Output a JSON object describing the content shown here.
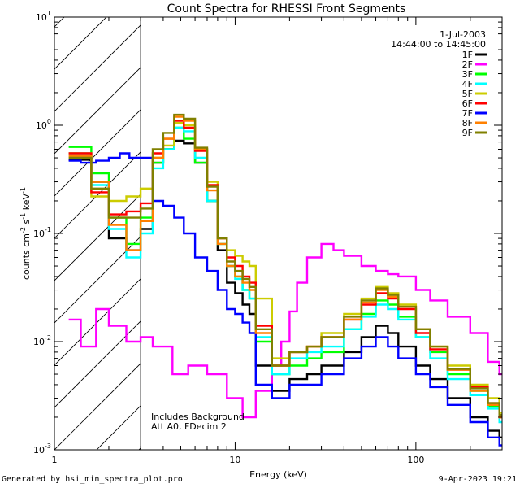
{
  "chart_data": {
    "type": "line",
    "title": "Count Spectra for RHESSI Front Segments",
    "xlabel": "Energy (keV)",
    "ylabel": "counts cm⁻² s⁻¹ keV⁻¹",
    "ylabel_parts": [
      "counts cm",
      "-2",
      " s",
      "-1",
      " keV",
      "-1"
    ],
    "xscale": "log",
    "yscale": "log",
    "xlim": [
      1,
      300
    ],
    "ylim": [
      0.001,
      10
    ],
    "x_ticks": [
      {
        "value": 1,
        "label": "1"
      },
      {
        "value": 10,
        "label": "10"
      },
      {
        "value": 100,
        "label": "100"
      }
    ],
    "y_ticks": [
      {
        "value": 0.001,
        "base": "10",
        "exp": "-3"
      },
      {
        "value": 0.01,
        "base": "10",
        "exp": "-2"
      },
      {
        "value": 0.1,
        "base": "10",
        "exp": "-1"
      },
      {
        "value": 1,
        "base": "10",
        "exp": "0"
      },
      {
        "value": 10,
        "base": "10",
        "exp": "1"
      }
    ],
    "hatch_region": [
      1,
      3
    ],
    "legend_header": [
      "1-Jul-2003",
      "14:44:00 to 14:45:00"
    ],
    "legend_position": "top-right",
    "annotations": [
      "Includes Background",
      "Att A0, FDecim 2"
    ],
    "series": [
      {
        "name": "1F",
        "color": "#000000",
        "points": [
          [
            1.2,
            0.48
          ],
          [
            1.6,
            0.3
          ],
          [
            2.0,
            0.09
          ],
          [
            2.5,
            0.07
          ],
          [
            3.0,
            0.11
          ],
          [
            3.5,
            0.45
          ],
          [
            4.0,
            0.6
          ],
          [
            4.6,
            0.72
          ],
          [
            5.2,
            0.68
          ],
          [
            6.0,
            0.45
          ],
          [
            7.0,
            0.2
          ],
          [
            8.0,
            0.07
          ],
          [
            9.0,
            0.035
          ],
          [
            10.0,
            0.028
          ],
          [
            11.0,
            0.022
          ],
          [
            12.0,
            0.018
          ],
          [
            13.0,
            0.006
          ],
          [
            16,
            0.0035
          ],
          [
            20,
            0.0045
          ],
          [
            25,
            0.005
          ],
          [
            30,
            0.006
          ],
          [
            40,
            0.008
          ],
          [
            50,
            0.011
          ],
          [
            60,
            0.014
          ],
          [
            70,
            0.012
          ],
          [
            80,
            0.009
          ],
          [
            100,
            0.006
          ],
          [
            120,
            0.0045
          ],
          [
            150,
            0.003
          ],
          [
            200,
            0.002
          ],
          [
            250,
            0.0015
          ],
          [
            290,
            0.0013
          ]
        ]
      },
      {
        "name": "2F",
        "color": "#ff00ff",
        "points": [
          [
            1.2,
            0.016
          ],
          [
            1.4,
            0.009
          ],
          [
            1.7,
            0.02
          ],
          [
            2.0,
            0.014
          ],
          [
            2.5,
            0.01
          ],
          [
            3.0,
            0.011
          ],
          [
            3.5,
            0.009
          ],
          [
            4.5,
            0.005
          ],
          [
            5.5,
            0.006
          ],
          [
            7.0,
            0.005
          ],
          [
            9.0,
            0.003
          ],
          [
            11.0,
            0.002
          ],
          [
            13.0,
            0.0035
          ],
          [
            16,
            0.006
          ],
          [
            18,
            0.01
          ],
          [
            20,
            0.019
          ],
          [
            22,
            0.035
          ],
          [
            25,
            0.06
          ],
          [
            30,
            0.08
          ],
          [
            35,
            0.07
          ],
          [
            40,
            0.062
          ],
          [
            50,
            0.05
          ],
          [
            60,
            0.045
          ],
          [
            70,
            0.042
          ],
          [
            80,
            0.04
          ],
          [
            100,
            0.03
          ],
          [
            120,
            0.024
          ],
          [
            150,
            0.017
          ],
          [
            200,
            0.012
          ],
          [
            250,
            0.0065
          ],
          [
            290,
            0.005
          ]
        ]
      },
      {
        "name": "3F",
        "color": "#00ff00",
        "points": [
          [
            1.2,
            0.63
          ],
          [
            1.6,
            0.36
          ],
          [
            2.0,
            0.14
          ],
          [
            2.5,
            0.08
          ],
          [
            3.0,
            0.14
          ],
          [
            3.5,
            0.45
          ],
          [
            4.0,
            0.6
          ],
          [
            4.6,
            0.95
          ],
          [
            5.2,
            0.75
          ],
          [
            6.0,
            0.45
          ],
          [
            7.0,
            0.2
          ],
          [
            8.0,
            0.08
          ],
          [
            9.0,
            0.05
          ],
          [
            10.0,
            0.04
          ],
          [
            11.0,
            0.03
          ],
          [
            12.0,
            0.025
          ],
          [
            13.0,
            0.01
          ],
          [
            16,
            0.005
          ],
          [
            20,
            0.006
          ],
          [
            25,
            0.007
          ],
          [
            30,
            0.008
          ],
          [
            40,
            0.013
          ],
          [
            50,
            0.018
          ],
          [
            60,
            0.024
          ],
          [
            70,
            0.022
          ],
          [
            80,
            0.017
          ],
          [
            100,
            0.011
          ],
          [
            120,
            0.008
          ],
          [
            150,
            0.005
          ],
          [
            200,
            0.0035
          ],
          [
            250,
            0.0025
          ],
          [
            290,
            0.002
          ]
        ]
      },
      {
        "name": "4F",
        "color": "#00ffff",
        "points": [
          [
            1.2,
            0.55
          ],
          [
            1.6,
            0.28
          ],
          [
            2.0,
            0.11
          ],
          [
            2.5,
            0.06
          ],
          [
            3.0,
            0.1
          ],
          [
            3.5,
            0.4
          ],
          [
            4.0,
            0.6
          ],
          [
            4.6,
            0.95
          ],
          [
            5.2,
            0.88
          ],
          [
            6.0,
            0.5
          ],
          [
            7.0,
            0.2
          ],
          [
            8.0,
            0.08
          ],
          [
            9.0,
            0.05
          ],
          [
            10.0,
            0.038
          ],
          [
            11.0,
            0.03
          ],
          [
            12.0,
            0.025
          ],
          [
            13.0,
            0.011
          ],
          [
            16,
            0.005
          ],
          [
            20,
            0.007
          ],
          [
            25,
            0.008
          ],
          [
            30,
            0.009
          ],
          [
            40,
            0.013
          ],
          [
            50,
            0.017
          ],
          [
            60,
            0.022
          ],
          [
            70,
            0.02
          ],
          [
            80,
            0.016
          ],
          [
            100,
            0.011
          ],
          [
            120,
            0.007
          ],
          [
            150,
            0.0045
          ],
          [
            200,
            0.0032
          ],
          [
            250,
            0.0024
          ],
          [
            290,
            0.0018
          ]
        ]
      },
      {
        "name": "5F",
        "color": "#cccc00",
        "points": [
          [
            1.2,
            0.55
          ],
          [
            1.6,
            0.22
          ],
          [
            2.0,
            0.2
          ],
          [
            2.5,
            0.22
          ],
          [
            3.0,
            0.26
          ],
          [
            3.5,
            0.5
          ],
          [
            4.0,
            0.65
          ],
          [
            4.6,
            1.05
          ],
          [
            5.2,
            1.0
          ],
          [
            6.0,
            0.6
          ],
          [
            7.0,
            0.3
          ],
          [
            8.0,
            0.09
          ],
          [
            9.0,
            0.07
          ],
          [
            10.0,
            0.062
          ],
          [
            11.0,
            0.055
          ],
          [
            12.0,
            0.05
          ],
          [
            13.0,
            0.025
          ],
          [
            16,
            0.007
          ],
          [
            20,
            0.008
          ],
          [
            25,
            0.009
          ],
          [
            30,
            0.012
          ],
          [
            40,
            0.018
          ],
          [
            50,
            0.025
          ],
          [
            60,
            0.032
          ],
          [
            70,
            0.028
          ],
          [
            80,
            0.022
          ],
          [
            100,
            0.013
          ],
          [
            120,
            0.009
          ],
          [
            150,
            0.006
          ],
          [
            200,
            0.004
          ],
          [
            250,
            0.003
          ],
          [
            290,
            0.0022
          ]
        ]
      },
      {
        "name": "6F",
        "color": "#ff0000",
        "points": [
          [
            1.2,
            0.55
          ],
          [
            1.6,
            0.24
          ],
          [
            2.0,
            0.15
          ],
          [
            2.5,
            0.16
          ],
          [
            3.0,
            0.19
          ],
          [
            3.5,
            0.55
          ],
          [
            4.0,
            0.75
          ],
          [
            4.6,
            1.1
          ],
          [
            5.2,
            0.95
          ],
          [
            6.0,
            0.58
          ],
          [
            7.0,
            0.28
          ],
          [
            8.0,
            0.09
          ],
          [
            9.0,
            0.06
          ],
          [
            10.0,
            0.05
          ],
          [
            11.0,
            0.04
          ],
          [
            12.0,
            0.035
          ],
          [
            13.0,
            0.014
          ],
          [
            16,
            0.006
          ],
          [
            20,
            0.008
          ],
          [
            25,
            0.009
          ],
          [
            30,
            0.011
          ],
          [
            40,
            0.016
          ],
          [
            50,
            0.022
          ],
          [
            60,
            0.028
          ],
          [
            70,
            0.025
          ],
          [
            80,
            0.02
          ],
          [
            100,
            0.012
          ],
          [
            120,
            0.0085
          ],
          [
            150,
            0.0055
          ],
          [
            200,
            0.0038
          ],
          [
            250,
            0.0027
          ],
          [
            290,
            0.002
          ]
        ]
      },
      {
        "name": "7F",
        "color": "#0000ff",
        "points": [
          [
            1.2,
            0.47
          ],
          [
            1.4,
            0.45
          ],
          [
            1.7,
            0.47
          ],
          [
            2.0,
            0.5
          ],
          [
            2.3,
            0.55
          ],
          [
            2.6,
            0.5
          ],
          [
            3.0,
            0.5
          ],
          [
            3.5,
            0.2
          ],
          [
            4.0,
            0.18
          ],
          [
            4.6,
            0.14
          ],
          [
            5.2,
            0.1
          ],
          [
            6.0,
            0.06
          ],
          [
            7.0,
            0.045
          ],
          [
            8.0,
            0.03
          ],
          [
            9.0,
            0.02
          ],
          [
            10.0,
            0.018
          ],
          [
            11.0,
            0.015
          ],
          [
            12.0,
            0.012
          ],
          [
            13.0,
            0.004
          ],
          [
            16,
            0.003
          ],
          [
            20,
            0.004
          ],
          [
            25,
            0.004
          ],
          [
            30,
            0.005
          ],
          [
            40,
            0.007
          ],
          [
            50,
            0.009
          ],
          [
            60,
            0.011
          ],
          [
            70,
            0.009
          ],
          [
            80,
            0.007
          ],
          [
            100,
            0.005
          ],
          [
            120,
            0.0038
          ],
          [
            150,
            0.0026
          ],
          [
            200,
            0.0018
          ],
          [
            250,
            0.0013
          ],
          [
            290,
            0.0011
          ]
        ]
      },
      {
        "name": "8F",
        "color": "#ff8000",
        "points": [
          [
            1.2,
            0.52
          ],
          [
            1.6,
            0.3
          ],
          [
            2.0,
            0.12
          ],
          [
            2.5,
            0.07
          ],
          [
            3.0,
            0.13
          ],
          [
            3.5,
            0.5
          ],
          [
            4.0,
            0.75
          ],
          [
            4.6,
            1.2
          ],
          [
            5.2,
            1.1
          ],
          [
            6.0,
            0.6
          ],
          [
            7.0,
            0.25
          ],
          [
            8.0,
            0.08
          ],
          [
            9.0,
            0.05
          ],
          [
            10.0,
            0.04
          ],
          [
            11.0,
            0.035
          ],
          [
            12.0,
            0.03
          ],
          [
            13.0,
            0.012
          ],
          [
            16,
            0.006
          ],
          [
            20,
            0.008
          ],
          [
            25,
            0.009
          ],
          [
            30,
            0.011
          ],
          [
            40,
            0.016
          ],
          [
            50,
            0.023
          ],
          [
            60,
            0.03
          ],
          [
            70,
            0.026
          ],
          [
            80,
            0.021
          ],
          [
            100,
            0.013
          ],
          [
            120,
            0.009
          ],
          [
            150,
            0.0055
          ],
          [
            200,
            0.0035
          ],
          [
            250,
            0.0026
          ],
          [
            290,
            0.002
          ]
        ]
      },
      {
        "name": "9F",
        "color": "#808000",
        "points": [
          [
            1.2,
            0.5
          ],
          [
            1.6,
            0.26
          ],
          [
            2.0,
            0.14
          ],
          [
            2.5,
            0.14
          ],
          [
            3.0,
            0.17
          ],
          [
            3.5,
            0.6
          ],
          [
            4.0,
            0.85
          ],
          [
            4.6,
            1.25
          ],
          [
            5.2,
            1.15
          ],
          [
            6.0,
            0.62
          ],
          [
            7.0,
            0.27
          ],
          [
            8.0,
            0.09
          ],
          [
            9.0,
            0.055
          ],
          [
            10.0,
            0.045
          ],
          [
            11.0,
            0.038
          ],
          [
            12.0,
            0.032
          ],
          [
            13.0,
            0.013
          ],
          [
            16,
            0.006
          ],
          [
            20,
            0.008
          ],
          [
            25,
            0.009
          ],
          [
            30,
            0.011
          ],
          [
            40,
            0.017
          ],
          [
            50,
            0.024
          ],
          [
            60,
            0.031
          ],
          [
            70,
            0.027
          ],
          [
            80,
            0.021
          ],
          [
            100,
            0.013
          ],
          [
            120,
            0.009
          ],
          [
            150,
            0.0056
          ],
          [
            200,
            0.0037
          ],
          [
            250,
            0.0027
          ],
          [
            290,
            0.0021
          ]
        ]
      }
    ]
  },
  "footer": {
    "left": "Generated by hsi_min_spectra_plot.pro",
    "right": "9-Apr-2023 19:21"
  }
}
